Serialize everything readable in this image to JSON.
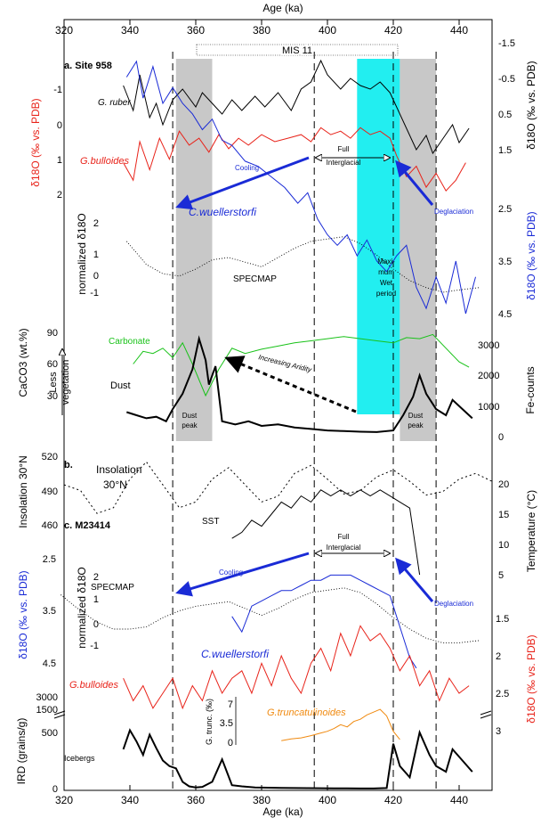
{
  "chart_data": {
    "type": "line",
    "x_axis": {
      "label": "Age (ka)",
      "ticks": [
        320,
        340,
        360,
        380,
        400,
        420,
        440
      ],
      "range": [
        320,
        450
      ]
    },
    "mis_label": "MIS 11",
    "shaded_intervals": [
      {
        "range": [
          354,
          365
        ],
        "color": "#c8c8c8"
      },
      {
        "range": [
          409,
          422
        ],
        "color": "#22eef0"
      },
      {
        "range": [
          422,
          433
        ],
        "color": "#c8c8c8"
      }
    ],
    "dashed_lines": [
      353,
      396,
      420,
      433
    ],
    "panel_a": {
      "label": "a. Site 958",
      "left_axis_1": {
        "label": "δ18O (‰ vs. PDB)",
        "ticks": [
          "-1",
          "0",
          "1",
          "2"
        ],
        "color": "#e8231a"
      },
      "right_axis_1": {
        "label": "δ18O (‰ vs. PDB)",
        "ticks": [
          "-1.5",
          "-0.5",
          "0.5",
          "1.5"
        ]
      },
      "right_axis_2": {
        "label": "δ18O (‰ vs. PDB)",
        "ticks": [
          "2.5",
          "3.5",
          "4.5"
        ],
        "color": "#1a2bd6"
      },
      "left_axis_2": {
        "label": "normalized δ18O",
        "ticks": [
          "2",
          "1",
          "0",
          "-1"
        ]
      },
      "left_axis_3": {
        "label": "CaCO3 (wt.%)",
        "ticks": [
          "90",
          "60",
          "30"
        ]
      },
      "right_axis_3": {
        "label": "Fe-counts",
        "ticks": [
          "3000",
          "2000",
          "1000",
          "0"
        ]
      },
      "series": [
        {
          "name": "G. ruber",
          "color": "#000000",
          "x": [
            338,
            341,
            343,
            346,
            348,
            350,
            353,
            356,
            360,
            362,
            365,
            368,
            371,
            374,
            378,
            381,
            385,
            389,
            392,
            395,
            398,
            400,
            404,
            407,
            410,
            413,
            416,
            419,
            421,
            424,
            427,
            430,
            432,
            435,
            438,
            440,
            443
          ],
          "y": [
            -0.3,
            0.4,
            -0.6,
            0.6,
            0.2,
            0.8,
            0.1,
            -0.2,
            0.3,
            -0.1,
            0.2,
            0.5,
            0.1,
            0.4,
            0.0,
            0.3,
            -0.1,
            0.4,
            -0.2,
            -0.4,
            -1.0,
            -0.6,
            -0.2,
            -0.5,
            -0.3,
            -0.2,
            -0.4,
            -0.1,
            0.3,
            0.9,
            1.5,
            1.1,
            1.6,
            1.2,
            0.8,
            1.3,
            0.9
          ]
        },
        {
          "name": "G.bulloides",
          "color": "#e8231a",
          "x": [
            338,
            341,
            343,
            346,
            349,
            352,
            355,
            358,
            361,
            364,
            367,
            370,
            373,
            376,
            380,
            384,
            388,
            392,
            395,
            398,
            401,
            404,
            407,
            410,
            413,
            416,
            419,
            421,
            424,
            427,
            430,
            433,
            436,
            439,
            442
          ],
          "y": [
            1.1,
            1.6,
            0.5,
            1.3,
            0.4,
            1.0,
            0.2,
            0.6,
            0.4,
            0.8,
            0.3,
            0.7,
            0.4,
            0.6,
            0.3,
            0.5,
            0.4,
            0.3,
            0.5,
            0.1,
            0.3,
            0.2,
            0.4,
            0.1,
            0.3,
            0.2,
            0.4,
            0.9,
            1.5,
            1.2,
            1.8,
            1.4,
            1.9,
            1.6,
            1.1
          ]
        },
        {
          "name": "C.wuellerstorfi",
          "color": "#1a2bd6",
          "x": [
            339,
            342,
            344,
            347,
            350,
            353,
            356,
            359,
            362,
            365,
            368,
            371,
            375,
            379,
            383,
            387,
            391,
            394,
            397,
            400,
            403,
            406,
            409,
            412,
            415,
            418,
            421,
            424,
            427,
            430,
            433,
            436,
            439,
            442,
            445
          ],
          "y": [
            0.0,
            -0.3,
            0.4,
            -0.2,
            0.5,
            0.2,
            0.5,
            0.7,
            1.0,
            0.8,
            1.2,
            1.3,
            1.6,
            1.7,
            1.9,
            2.1,
            2.4,
            2.2,
            2.7,
            3.0,
            3.2,
            3.0,
            3.4,
            3.1,
            3.5,
            3.7,
            3.4,
            3.2,
            4.0,
            4.4,
            3.8,
            4.3,
            3.5,
            4.5,
            3.8
          ]
        },
        {
          "name": "SPECMAP",
          "color": "#000000",
          "x": [
            339,
            345,
            350,
            355,
            360,
            365,
            370,
            375,
            380,
            385,
            390,
            395,
            400,
            405,
            410,
            415,
            420,
            425,
            430,
            435,
            440,
            446
          ],
          "y": [
            1.2,
            0.2,
            -0.2,
            -0.3,
            0.0,
            0.4,
            0.5,
            0.3,
            0.1,
            0.5,
            0.9,
            1.2,
            1.3,
            1.4,
            1.1,
            0.6,
            0.0,
            -0.5,
            -0.8,
            -1.0,
            -0.9,
            -0.8
          ]
        },
        {
          "name": "Carbonate",
          "color": "#19c219",
          "x": [
            341,
            344,
            347,
            350,
            353,
            356,
            359,
            363,
            367,
            371,
            375,
            380,
            385,
            390,
            395,
            400,
            405,
            410,
            415,
            420,
            424,
            428,
            432,
            436,
            440,
            443
          ],
          "y": [
            60,
            72,
            70,
            75,
            66,
            80,
            60,
            30,
            55,
            75,
            70,
            74,
            77,
            80,
            82,
            84,
            86,
            84,
            82,
            80,
            85,
            84,
            88,
            75,
            62,
            57
          ]
        },
        {
          "name": "Dust",
          "color": "#000000",
          "x": [
            339,
            342,
            345,
            348,
            351,
            353,
            356,
            359,
            361,
            363,
            364,
            366,
            368,
            372,
            376,
            380,
            385,
            390,
            395,
            400,
            405,
            410,
            415,
            420,
            423,
            426,
            428,
            430,
            433,
            436,
            438,
            441,
            444
          ],
          "y": [
            800,
            700,
            600,
            650,
            500,
            900,
            1400,
            2200,
            3200,
            2500,
            1700,
            2300,
            500,
            400,
            500,
            350,
            400,
            300,
            250,
            200,
            180,
            160,
            150,
            200,
            700,
            1300,
            2000,
            1400,
            900,
            700,
            1200,
            900,
            600
          ]
        }
      ],
      "annotations": {
        "cooling": "Cooling",
        "deglaciation": "Deglaciation",
        "full_interglacial_1": "Full",
        "full_interglacial_2": "Interglacial",
        "max_wet_1": "Maxi-",
        "max_wet_2": "mum",
        "max_wet_3": "Wet",
        "max_wet_4": "period",
        "specmap": "SPECMAP",
        "increasing_aridity": "Increasing Aridity",
        "dust_peak_1": "Dust",
        "dust_peak_2": "peak",
        "less_veg_1": "Less",
        "less_veg_2": "vegetation"
      }
    },
    "panel_b": {
      "label": "b.",
      "title_1": "Insolation",
      "title_2": "30°N",
      "left_axis": {
        "label": "Insolation 30°N",
        "ticks": [
          "520",
          "490",
          "460"
        ]
      },
      "series": [
        {
          "name": "Insolation",
          "color": "#000000",
          "x": [
            320,
            325,
            330,
            335,
            340,
            345,
            350,
            355,
            360,
            365,
            370,
            375,
            380,
            385,
            390,
            395,
            400,
            405,
            410,
            415,
            420,
            425,
            430,
            435,
            440,
            445,
            450
          ],
          "y": [
            495,
            490,
            470,
            475,
            500,
            515,
            495,
            475,
            480,
            500,
            510,
            495,
            480,
            485,
            505,
            512,
            500,
            487,
            490,
            502,
            508,
            498,
            486,
            489,
            500,
            505,
            498
          ]
        }
      ]
    },
    "panel_c": {
      "label": "c. M23414",
      "right_axis_temp": {
        "label": "Temperature (°C)",
        "ticks": [
          "20",
          "15",
          "10",
          "5"
        ]
      },
      "left_axis_blue": {
        "label": "δ18O (‰ vs. PDB)",
        "ticks": [
          "2.5",
          "3.5",
          "4.5"
        ],
        "color": "#1a2bd6"
      },
      "left_axis_norm": {
        "label": "normalized δ18O",
        "ticks": [
          "2",
          "1",
          "0",
          "-1"
        ]
      },
      "right_axis_red": {
        "label": "δ18O (‰ vs. PDB)",
        "ticks": [
          "1.5",
          "2",
          "2.5",
          "3"
        ],
        "color": "#e8231a"
      },
      "left_axis_ird": {
        "label": "IRD (grains/g)",
        "ticks": [
          "3000",
          "1500",
          "500",
          "0"
        ]
      },
      "inset_axis": {
        "label": "G. trunc. (‰)",
        "ticks": [
          "7",
          "3.5",
          "0"
        ]
      },
      "series": [
        {
          "name": "SST",
          "color": "#000000",
          "x": [
            371,
            374,
            377,
            380,
            383,
            386,
            389,
            392,
            395,
            398,
            401,
            404,
            407,
            410,
            413,
            416,
            419,
            422,
            425,
            428
          ],
          "y": [
            11,
            12,
            14,
            13,
            15,
            17,
            16,
            18,
            17,
            19,
            18,
            19,
            18,
            19,
            18,
            19,
            18,
            17,
            16,
            5
          ]
        },
        {
          "name": "SPECMAP",
          "color": "#000000",
          "x": [
            319,
            325,
            330,
            335,
            340,
            345,
            350,
            355,
            360,
            365,
            370,
            375,
            380,
            385,
            390,
            395,
            400,
            405,
            410,
            415,
            420,
            425,
            430,
            435,
            440,
            446
          ],
          "y": [
            1.2,
            0.5,
            0.0,
            -0.3,
            -0.3,
            -0.2,
            0.2,
            0.5,
            0.7,
            0.8,
            0.9,
            0.6,
            0.3,
            0.6,
            1.0,
            1.3,
            1.4,
            1.5,
            1.3,
            0.8,
            0.2,
            -0.3,
            -0.7,
            -0.9,
            -0.9,
            -0.8
          ]
        },
        {
          "name": "C.wuellerstorfi",
          "color": "#1a2bd6",
          "x": [
            371,
            374,
            377,
            380,
            383,
            386,
            389,
            392,
            395,
            398,
            401,
            404,
            407,
            410,
            413,
            416,
            419,
            421,
            423,
            425,
            427
          ],
          "y": [
            3.6,
            3.9,
            3.4,
            3.3,
            3.2,
            3.1,
            3.1,
            3.0,
            2.9,
            2.9,
            2.8,
            2.8,
            2.8,
            2.9,
            3.0,
            3.1,
            3.2,
            3.6,
            4.0,
            4.4,
            4.6
          ]
        },
        {
          "name": "G.bulloides",
          "color": "#e8231a",
          "x": [
            338,
            341,
            344,
            347,
            350,
            353,
            356,
            359,
            362,
            365,
            368,
            371,
            374,
            377,
            380,
            383,
            386,
            389,
            392,
            395,
            398,
            401,
            404,
            407,
            410,
            413,
            416,
            419,
            422,
            425,
            428,
            431,
            434,
            437,
            440,
            443
          ],
          "y": [
            2.3,
            2.6,
            2.4,
            2.7,
            2.5,
            2.3,
            2.7,
            2.4,
            2.6,
            2.2,
            2.5,
            2.3,
            2.2,
            2.5,
            2.1,
            2.4,
            2.0,
            2.3,
            2.5,
            2.1,
            1.9,
            2.2,
            1.7,
            2.0,
            1.6,
            1.8,
            1.7,
            1.9,
            2.2,
            2.0,
            2.4,
            2.2,
            2.6,
            2.3,
            2.5,
            2.4
          ]
        },
        {
          "name": "G.truncatulinoides",
          "color": "#f08a10",
          "x": [
            386,
            389,
            392,
            395,
            398,
            400,
            402,
            404,
            406,
            408,
            410,
            412,
            414,
            416,
            418,
            420,
            422
          ],
          "y": [
            0.3,
            0.6,
            0.8,
            1.2,
            1.7,
            2.0,
            2.5,
            3.2,
            2.8,
            3.8,
            4.2,
            5.0,
            5.5,
            6.0,
            4.8,
            2.0,
            0.5
          ]
        },
        {
          "name": "Icebergs",
          "color": "#000000",
          "x": [
            338,
            340,
            342,
            344,
            346,
            348,
            350,
            352,
            354,
            356,
            358,
            360,
            362,
            365,
            368,
            371,
            374,
            378,
            382,
            386,
            390,
            394,
            398,
            402,
            406,
            410,
            414,
            418,
            420,
            422,
            425,
            428,
            431,
            433,
            436,
            438,
            441,
            444
          ],
          "y": [
            350,
            520,
            420,
            300,
            480,
            360,
            250,
            200,
            180,
            60,
            20,
            10,
            15,
            60,
            260,
            30,
            20,
            10,
            8,
            6,
            5,
            4,
            3,
            2,
            2,
            1,
            1,
            5,
            400,
            200,
            100,
            500,
            300,
            200,
            150,
            350,
            250,
            150
          ]
        }
      ],
      "annotations": {
        "cooling": "Cooling",
        "deglaciation": "Deglaciation",
        "full_interglacial_1": "Full",
        "full_interglacial_2": "Interglacial",
        "specmap": "SPECMAP",
        "sst": "SST",
        "icebergs": "Icebergs"
      }
    }
  }
}
